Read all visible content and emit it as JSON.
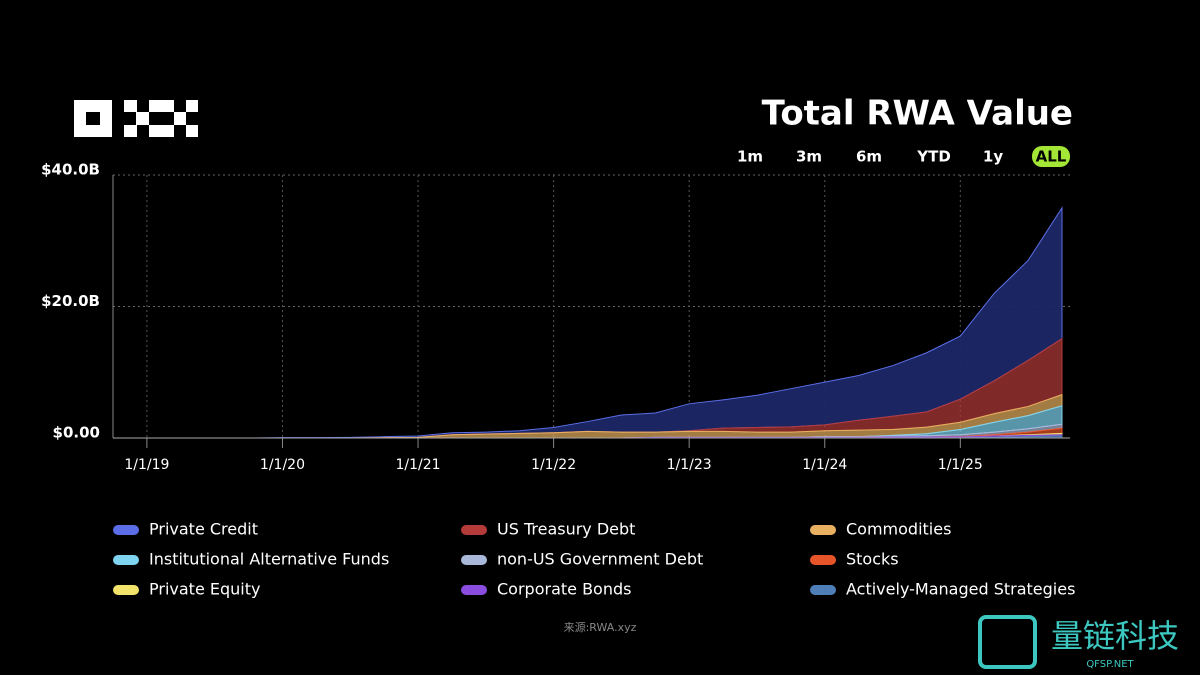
{
  "chart_data": {
    "type": "stacked-area",
    "title": "Total RWA Value",
    "x": [
      "10/1/18",
      "1/1/19",
      "4/1/19",
      "7/1/19",
      "10/1/19",
      "1/1/20",
      "4/1/20",
      "7/1/20",
      "10/1/20",
      "1/1/21",
      "4/1/21",
      "7/1/21",
      "10/1/21",
      "1/1/22",
      "4/1/22",
      "7/1/22",
      "10/1/22",
      "1/1/23",
      "4/1/23",
      "7/1/23",
      "10/1/23",
      "1/1/24",
      "4/1/24",
      "7/1/24",
      "10/1/24",
      "1/1/25",
      "4/1/25",
      "7/1/25",
      "10/1/25"
    ],
    "xticks": [
      "1/1/19",
      "1/1/20",
      "1/1/21",
      "1/1/22",
      "1/1/23",
      "1/1/24",
      "1/1/25"
    ],
    "ylim": [
      0,
      40
    ],
    "yticks": [
      {
        "value": 0,
        "label": "$0.00"
      },
      {
        "value": 20,
        "label": "$20.0B"
      },
      {
        "value": 40,
        "label": "$40.0B"
      }
    ],
    "grid": true,
    "series": [
      {
        "name": "Private Credit",
        "color": "#5b6ee8",
        "values": [
          0,
          0,
          0,
          0,
          0,
          0.05,
          0.05,
          0.1,
          0.15,
          0.2,
          0.3,
          0.3,
          0.4,
          0.8,
          1.5,
          2.6,
          2.9,
          4.1,
          4.3,
          4.9,
          5.8,
          6.5,
          6.8,
          7.7,
          9.0,
          9.6,
          13.3,
          15.2,
          19.9
        ]
      },
      {
        "name": "US Treasury Debt",
        "color": "#b53a3a",
        "values": [
          0,
          0,
          0,
          0,
          0,
          0,
          0,
          0,
          0,
          0,
          0,
          0,
          0,
          0,
          0,
          0,
          0,
          0.1,
          0.5,
          0.7,
          0.8,
          0.9,
          1.5,
          2.0,
          2.3,
          3.5,
          5.0,
          7.0,
          8.5
        ]
      },
      {
        "name": "Commodities",
        "color": "#e8b060",
        "values": [
          0,
          0,
          0,
          0,
          0,
          0,
          0,
          0,
          0.05,
          0.1,
          0.5,
          0.6,
          0.7,
          0.8,
          1.0,
          0.9,
          0.8,
          0.9,
          0.9,
          0.8,
          0.8,
          0.9,
          1.0,
          0.9,
          1.0,
          1.1,
          1.3,
          1.4,
          1.7
        ]
      },
      {
        "name": "Institutional Alternative Funds",
        "color": "#7fd4f0",
        "values": [
          0,
          0,
          0,
          0,
          0,
          0,
          0,
          0,
          0,
          0,
          0,
          0,
          0,
          0,
          0,
          0,
          0,
          0,
          0,
          0,
          0,
          0,
          0,
          0.1,
          0.3,
          0.8,
          1.5,
          2.0,
          2.8
        ]
      },
      {
        "name": "non-US Government Debt",
        "color": "#a9b8d8",
        "values": [
          0,
          0,
          0,
          0,
          0,
          0,
          0,
          0,
          0,
          0,
          0,
          0,
          0,
          0,
          0,
          0,
          0,
          0,
          0,
          0,
          0,
          0.1,
          0.1,
          0.15,
          0.2,
          0.3,
          0.4,
          0.5,
          0.6
        ]
      },
      {
        "name": "Stocks",
        "color": "#e8542a",
        "values": [
          0,
          0,
          0,
          0,
          0,
          0,
          0,
          0,
          0,
          0,
          0,
          0,
          0,
          0,
          0,
          0,
          0,
          0,
          0,
          0,
          0,
          0,
          0,
          0,
          0,
          0.05,
          0.2,
          0.4,
          0.8
        ]
      },
      {
        "name": "Private Equity",
        "color": "#f2e36a",
        "values": [
          0,
          0,
          0,
          0,
          0,
          0,
          0,
          0,
          0,
          0,
          0,
          0,
          0,
          0,
          0,
          0,
          0,
          0,
          0,
          0,
          0,
          0,
          0,
          0,
          0,
          0,
          0,
          0.1,
          0.2
        ]
      },
      {
        "name": "Corporate Bonds",
        "color": "#8a4de0",
        "values": [
          0,
          0,
          0,
          0,
          0,
          0,
          0,
          0,
          0,
          0,
          0,
          0,
          0,
          0,
          0,
          0,
          0.1,
          0.1,
          0.1,
          0.1,
          0.1,
          0.1,
          0.1,
          0.15,
          0.15,
          0.15,
          0.2,
          0.2,
          0.2
        ]
      },
      {
        "name": "Actively-Managed Strategies",
        "color": "#4f7fb8",
        "values": [
          0,
          0,
          0,
          0,
          0,
          0,
          0,
          0,
          0,
          0,
          0,
          0,
          0,
          0,
          0,
          0,
          0,
          0,
          0,
          0,
          0,
          0,
          0,
          0,
          0,
          0,
          0.1,
          0.2,
          0.3
        ]
      }
    ]
  },
  "ui": {
    "ranges": [
      "1m",
      "3m",
      "6m",
      "YTD",
      "1y",
      "ALL"
    ],
    "source": "来源:RWA.xyz",
    "watermark": "量链科技",
    "watermark_site": "QFSP.NET"
  }
}
